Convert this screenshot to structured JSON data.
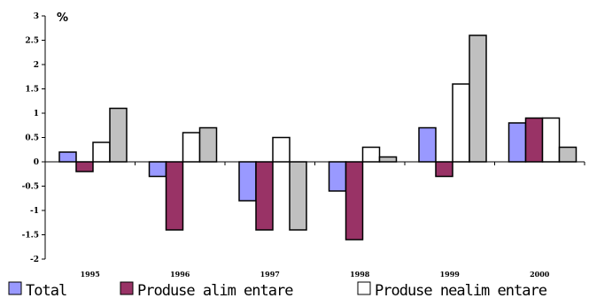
{
  "chart_data": {
    "type": "bar",
    "unit_label": "%",
    "categories": [
      "1995",
      "1996",
      "1997",
      "1998",
      "1999",
      "2000"
    ],
    "series": [
      {
        "name": "Total",
        "color": "#9999ff",
        "values": [
          0.2,
          -0.3,
          -0.8,
          -0.6,
          0.7,
          0.8
        ]
      },
      {
        "name": "Produse alimentare",
        "color": "#993366",
        "values": [
          -0.2,
          -1.4,
          -1.4,
          -1.6,
          -0.3,
          0.9
        ]
      },
      {
        "name": "Produse nealimentare",
        "color": "#ffffff",
        "values": [
          0.4,
          0.6,
          0.5,
          0.3,
          1.6,
          0.9
        ]
      },
      {
        "name": "",
        "color": "#c0c0c0",
        "values": [
          1.1,
          0.7,
          -1.4,
          0.1,
          2.6,
          0.3
        ]
      }
    ],
    "ylim": [
      -2,
      3
    ],
    "yticks": [
      "-2",
      "-1.5",
      "-1",
      "-0.5",
      "0",
      "0.5",
      "1",
      "1.5",
      "2",
      "2.5",
      "3"
    ],
    "grid": false,
    "legend_position": "bottom"
  },
  "legend_text": {
    "total": "Total",
    "alimentare": "Produse alim entare",
    "nealimentare": "Produse nealim entare"
  }
}
